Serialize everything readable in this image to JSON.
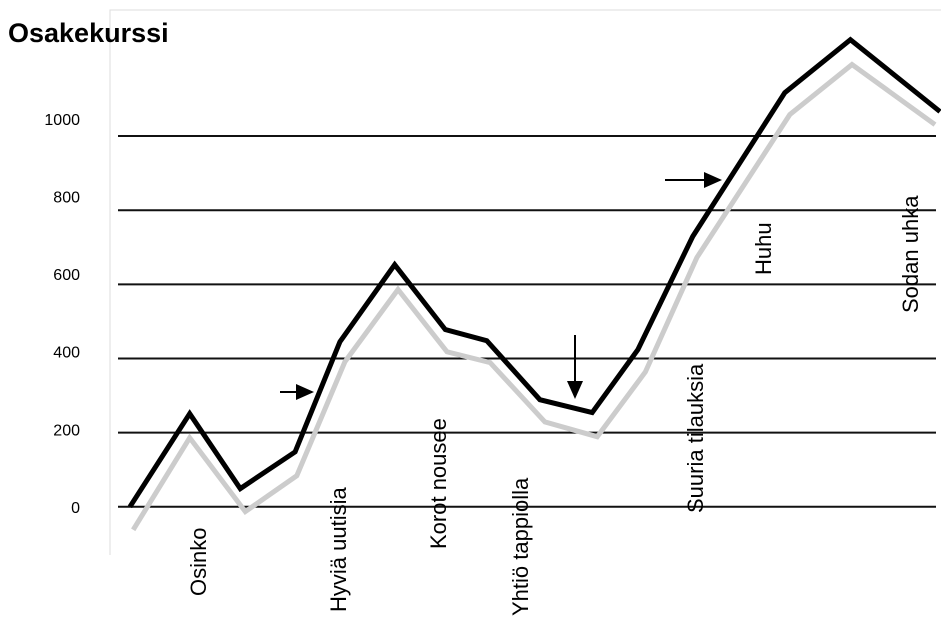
{
  "chart_data": {
    "type": "line",
    "title": "Osakekurssi",
    "series": [
      {
        "color": "#cccccc",
        "x": [
          2.8,
          9.6,
          16.3,
          22.5,
          28.3,
          34.7,
          40.6,
          45.8,
          52.4,
          58.7,
          64.5,
          70.7,
          81.9,
          89.4,
          99.4
        ],
        "values": [
          -62,
          186,
          -13,
          84,
          391,
          586,
          418,
          389,
          229,
          189,
          364,
          672,
          1058,
          1193,
          1031
        ]
      },
      {
        "color": "#000000",
        "x": [
          2.4,
          9.6,
          15.7,
          22.3,
          27.7,
          34.3,
          40.4,
          45.4,
          51.8,
          58.1,
          63.6,
          70.2,
          81.3,
          89.2,
          100
        ],
        "values": [
          0,
          251,
          49,
          148,
          445,
          653,
          478,
          448,
          289,
          254,
          424,
          729,
          1117,
          1260,
          1066
        ]
      }
    ],
    "annotations": [
      "Osinko",
      "Hyviä uutisia",
      "Korot nousee",
      "Yhtiö tappiolla",
      "Suuria tilauksia",
      "Huhu",
      "Sodan uhka"
    ],
    "xlim": [
      0,
      100
    ],
    "ylim": [
      -130,
      1340
    ],
    "yticks": [
      0,
      200,
      400,
      600,
      800,
      1000
    ],
    "grid": true
  }
}
